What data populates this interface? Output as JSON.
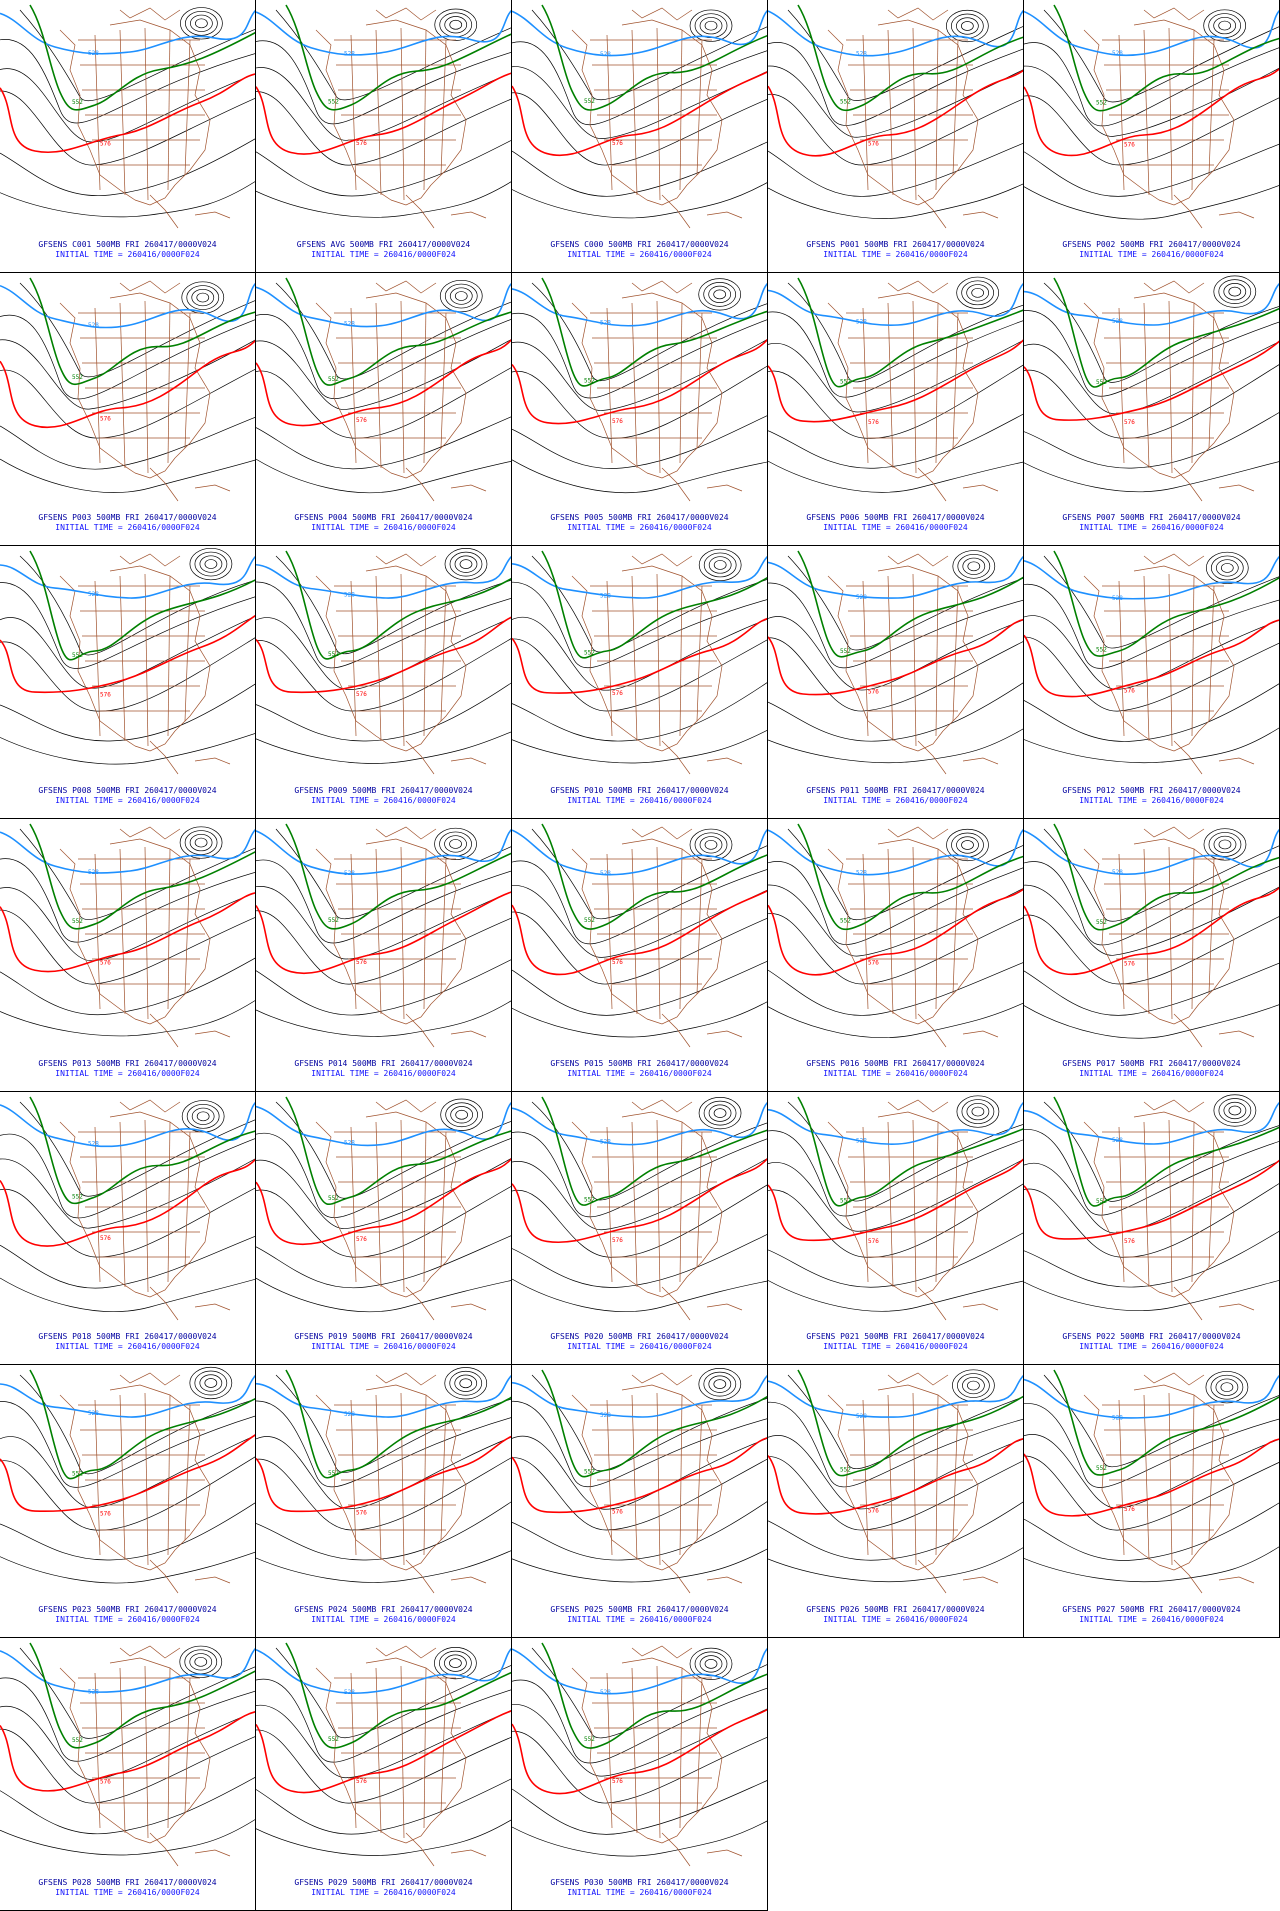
{
  "panels": [
    {
      "member": "GFSENS C001",
      "field": "500MB",
      "valid": "FRI 260417/0000V024",
      "initial": "INITIAL TIME = 260416/0000F024"
    },
    {
      "member": "GFSENS AVG",
      "field": "500MB",
      "valid": "FRI 260417/0000V024",
      "initial": "INITIAL TIME = 260416/0000F024"
    },
    {
      "member": "GFSENS C000",
      "field": "500MB",
      "valid": "FRI 260417/0000V024",
      "initial": "INITIAL TIME = 260416/0000F024"
    },
    {
      "member": "GFSENS P001",
      "field": "500MB",
      "valid": "FRI 260417/0000V024",
      "initial": "INITIAL TIME = 260416/0000F024"
    },
    {
      "member": "GFSENS P002",
      "field": "500MB",
      "valid": "FRI 260417/0000V024",
      "initial": "INITIAL TIME = 260416/0000F024"
    },
    {
      "member": "GFSENS P003",
      "field": "500MB",
      "valid": "FRI 260417/0000V024",
      "initial": "INITIAL TIME = 260416/0000F024"
    },
    {
      "member": "GFSENS P004",
      "field": "500MB",
      "valid": "FRI 260417/0000V024",
      "initial": "INITIAL TIME = 260416/0000F024"
    },
    {
      "member": "GFSENS P005",
      "field": "500MB",
      "valid": "FRI 260417/0000V024",
      "initial": "INITIAL TIME = 260416/0000F024"
    },
    {
      "member": "GFSENS P006",
      "field": "500MB",
      "valid": "FRI 260417/0000V024",
      "initial": "INITIAL TIME = 260416/0000F024"
    },
    {
      "member": "GFSENS P007",
      "field": "500MB",
      "valid": "FRI 260417/0000V024",
      "initial": "INITIAL TIME = 260416/0000F024"
    },
    {
      "member": "GFSENS P008",
      "field": "500MB",
      "valid": "FRI 260417/0000V024",
      "initial": "INITIAL TIME = 260416/0000F024"
    },
    {
      "member": "GFSENS P009",
      "field": "500MB",
      "valid": "FRI 260417/0000V024",
      "initial": "INITIAL TIME = 260416/0000F024"
    },
    {
      "member": "GFSENS P010",
      "field": "500MB",
      "valid": "FRI 260417/0000V024",
      "initial": "INITIAL TIME = 260416/0000F024"
    },
    {
      "member": "GFSENS P011",
      "field": "500MB",
      "valid": "FRI 260417/0000V024",
      "initial": "INITIAL TIME = 260416/0000F024"
    },
    {
      "member": "GFSENS P012",
      "field": "500MB",
      "valid": "FRI 260417/0000V024",
      "initial": "INITIAL TIME = 260416/0000F024"
    },
    {
      "member": "GFSENS P013",
      "field": "500MB",
      "valid": "FRI 260417/0000V024",
      "initial": "INITIAL TIME = 260416/0000F024"
    },
    {
      "member": "GFSENS P014",
      "field": "500MB",
      "valid": "FRI 260417/0000V024",
      "initial": "INITIAL TIME = 260416/0000F024"
    },
    {
      "member": "GFSENS P015",
      "field": "500MB",
      "valid": "FRI 260417/0000V024",
      "initial": "INITIAL TIME = 260416/0000F024"
    },
    {
      "member": "GFSENS P016",
      "field": "500MB",
      "valid": "FRI 260417/0000V024",
      "initial": "INITIAL TIME = 260416/0000F024"
    },
    {
      "member": "GFSENS P017",
      "field": "500MB",
      "valid": "FRI 260417/0000V024",
      "initial": "INITIAL TIME = 260416/0000F024"
    },
    {
      "member": "GFSENS P018",
      "field": "500MB",
      "valid": "FRI 260417/0000V024",
      "initial": "INITIAL TIME = 260416/0000F024"
    },
    {
      "member": "GFSENS P019",
      "field": "500MB",
      "valid": "FRI 260417/0000V024",
      "initial": "INITIAL TIME = 260416/0000F024"
    },
    {
      "member": "GFSENS P020",
      "field": "500MB",
      "valid": "FRI 260417/0000V024",
      "initial": "INITIAL TIME = 260416/0000F024"
    },
    {
      "member": "GFSENS P021",
      "field": "500MB",
      "valid": "FRI 260417/0000V024",
      "initial": "INITIAL TIME = 260416/0000F024"
    },
    {
      "member": "GFSENS P022",
      "field": "500MB",
      "valid": "FRI 260417/0000V024",
      "initial": "INITIAL TIME = 260416/0000F024"
    },
    {
      "member": "GFSENS P023",
      "field": "500MB",
      "valid": "FRI 260417/0000V024",
      "initial": "INITIAL TIME = 260416/0000F024"
    },
    {
      "member": "GFSENS P024",
      "field": "500MB",
      "valid": "FRI 260417/0000V024",
      "initial": "INITIAL TIME = 260416/0000F024"
    },
    {
      "member": "GFSENS P025",
      "field": "500MB",
      "valid": "FRI 260417/0000V024",
      "initial": "INITIAL TIME = 260416/0000F024"
    },
    {
      "member": "GFSENS P026",
      "field": "500MB",
      "valid": "FRI 260417/0000V024",
      "initial": "INITIAL TIME = 260416/0000F024"
    },
    {
      "member": "GFSENS P027",
      "field": "500MB",
      "valid": "FRI 260417/0000V024",
      "initial": "INITIAL TIME = 260416/0000F024"
    },
    {
      "member": "GFSENS P028",
      "field": "500MB",
      "valid": "FRI 260417/0000V024",
      "initial": "INITIAL TIME = 260416/0000F024"
    },
    {
      "member": "GFSENS P029",
      "field": "500MB",
      "valid": "FRI 260417/0000V024",
      "initial": "INITIAL TIME = 260416/0000F024"
    },
    {
      "member": "GFSENS P030",
      "field": "500MB",
      "valid": "FRI 260417/0000V024",
      "initial": "INITIAL TIME = 260416/0000F024"
    }
  ],
  "contour_labels": {
    "blue": "528",
    "green": "552",
    "red": "576"
  },
  "colors": {
    "blue_contour": "#1e90ff",
    "green_contour": "#008000",
    "red_contour": "#ff0000",
    "black_contour": "#000000",
    "map_lines": "#a0522d",
    "caption_dark": "#0000a0",
    "caption_light": "#1010ff"
  }
}
